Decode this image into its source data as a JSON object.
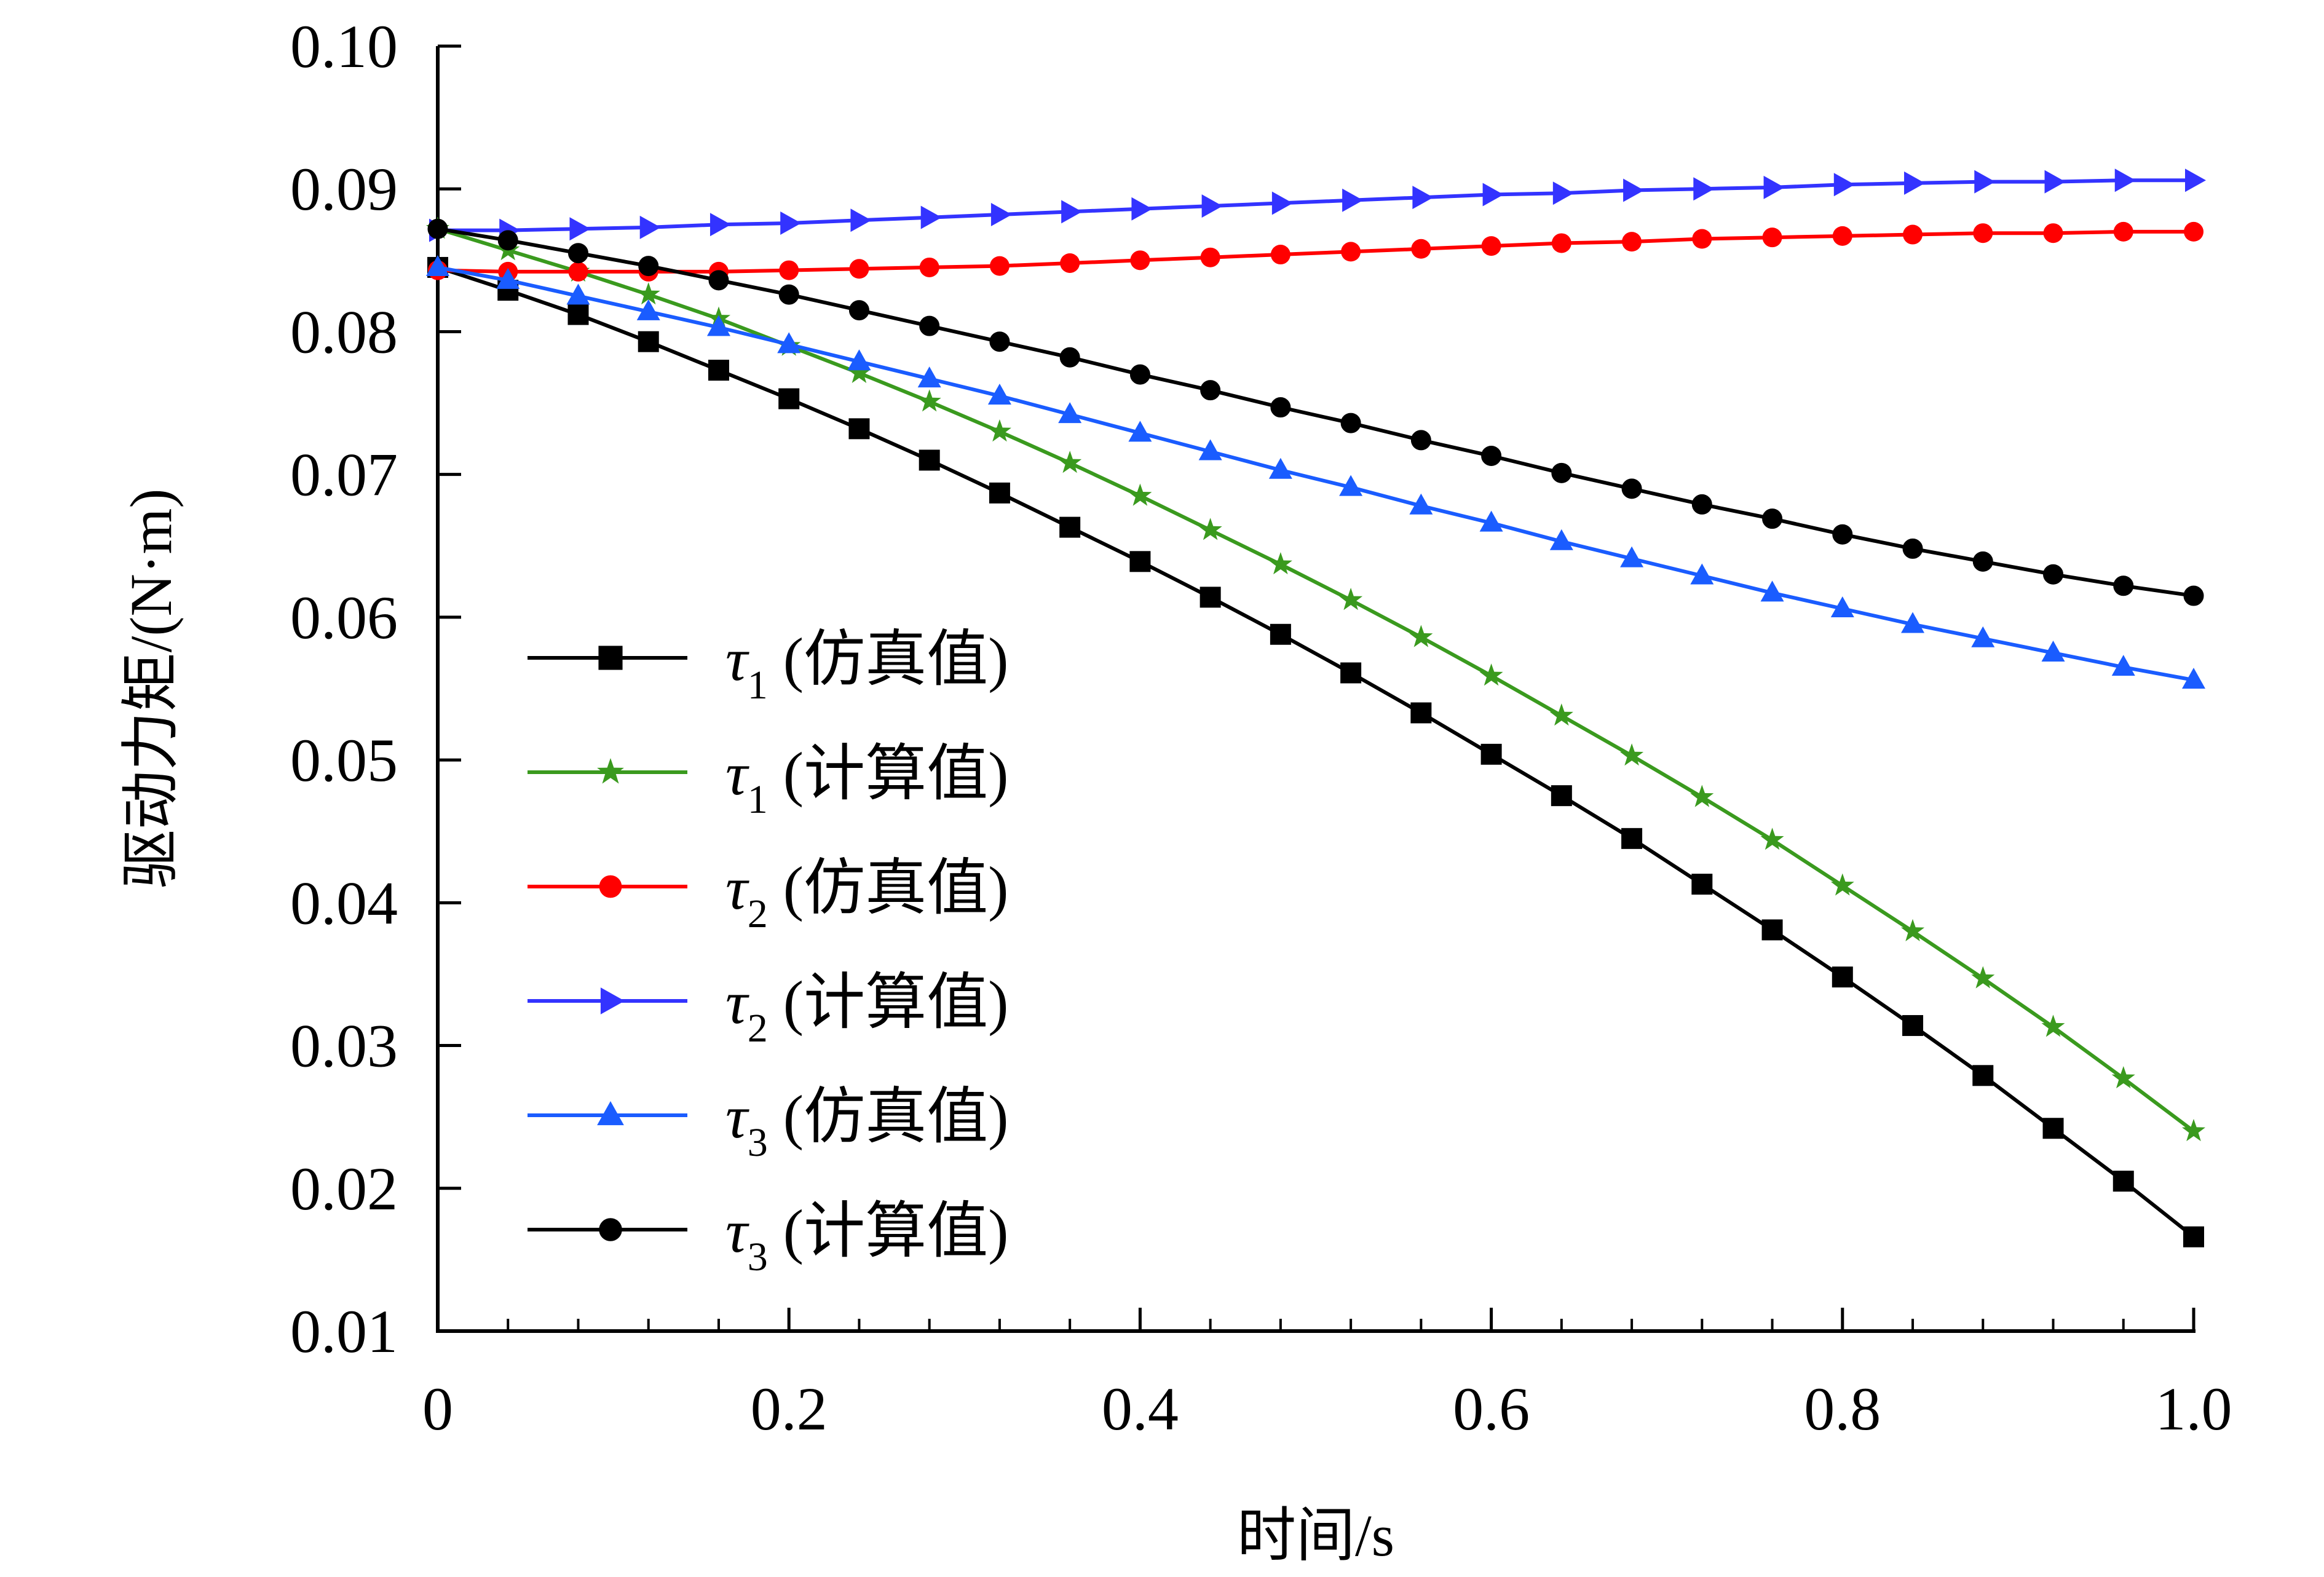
{
  "chart_data": {
    "type": "line",
    "title": "",
    "xlabel": "时间/s",
    "ylabel": "驱动力矩/(N·m)",
    "xlim": [
      0,
      1.0
    ],
    "ylim": [
      0.01,
      0.1
    ],
    "grid": false,
    "legend_position": "left-center",
    "x_ticks": [
      0,
      0.2,
      0.4,
      0.6,
      0.8,
      1.0
    ],
    "x_tick_labels": [
      "0",
      "0.2",
      "0.4",
      "0.6",
      "0.8",
      "1.0"
    ],
    "y_ticks": [
      0.01,
      0.02,
      0.03,
      0.04,
      0.05,
      0.06,
      0.07,
      0.08,
      0.09,
      0.1
    ],
    "y_tick_labels": [
      "0.01",
      "0.02",
      "0.03",
      "0.04",
      "0.05",
      "0.06",
      "0.07",
      "0.08",
      "0.09",
      "0.10"
    ],
    "x": [
      0,
      0.04,
      0.08,
      0.12,
      0.16,
      0.2,
      0.24,
      0.28,
      0.32,
      0.36,
      0.4,
      0.44,
      0.48,
      0.52,
      0.56,
      0.6,
      0.64,
      0.68,
      0.72,
      0.76,
      0.8,
      0.84,
      0.88,
      0.92,
      0.96,
      1.0
    ],
    "series": [
      {
        "name": "τ1 (仿真值)",
        "symbol": "τ",
        "subscript": "1",
        "suffix": " (仿真值)",
        "color": "#000000",
        "marker": "square",
        "values": [
          0.0845,
          0.0829,
          0.0812,
          0.0793,
          0.0773,
          0.0753,
          0.0732,
          0.071,
          0.0687,
          0.0663,
          0.0639,
          0.0614,
          0.0588,
          0.0561,
          0.0533,
          0.0504,
          0.0475,
          0.0445,
          0.0413,
          0.0381,
          0.0348,
          0.0314,
          0.0279,
          0.0242,
          0.0205,
          0.0166
        ]
      },
      {
        "name": "τ1 (计算值)",
        "symbol": "τ",
        "subscript": "1",
        "suffix": " (计算值)",
        "color": "#3a9a1e",
        "marker": "star",
        "values": [
          0.0872,
          0.0857,
          0.0842,
          0.0826,
          0.0809,
          0.079,
          0.0771,
          0.0751,
          0.073,
          0.0708,
          0.0685,
          0.0661,
          0.0637,
          0.0612,
          0.0586,
          0.0559,
          0.0531,
          0.0503,
          0.0474,
          0.0444,
          0.0412,
          0.038,
          0.0347,
          0.0313,
          0.0277,
          0.024
        ]
      },
      {
        "name": "τ2 (仿真值)",
        "symbol": "τ",
        "subscript": "2",
        "suffix": " (仿真值)",
        "color": "#ff0000",
        "marker": "circle",
        "values": [
          0.0843,
          0.0842,
          0.0842,
          0.0842,
          0.0842,
          0.0843,
          0.0844,
          0.0845,
          0.0846,
          0.0848,
          0.085,
          0.0852,
          0.0854,
          0.0856,
          0.0858,
          0.086,
          0.0862,
          0.0863,
          0.0865,
          0.0866,
          0.0867,
          0.0868,
          0.0869,
          0.0869,
          0.087,
          0.087
        ]
      },
      {
        "name": "τ2 (计算值)",
        "symbol": "τ",
        "subscript": "2",
        "suffix": " (计算值)",
        "color": "#3333ff",
        "marker": "triangle-right",
        "values": [
          0.0871,
          0.0871,
          0.0872,
          0.0873,
          0.0875,
          0.0876,
          0.0878,
          0.088,
          0.0882,
          0.0884,
          0.0886,
          0.0888,
          0.089,
          0.0892,
          0.0894,
          0.0896,
          0.0897,
          0.0899,
          0.09,
          0.0901,
          0.0903,
          0.0904,
          0.0905,
          0.0905,
          0.0906,
          0.0906
        ]
      },
      {
        "name": "τ3 (仿真值)",
        "symbol": "τ",
        "subscript": "3",
        "suffix": " (仿真值)",
        "color": "#1a5cff",
        "marker": "triangle-up",
        "values": [
          0.0845,
          0.0836,
          0.0825,
          0.0814,
          0.0803,
          0.0791,
          0.0779,
          0.0767,
          0.0755,
          0.0742,
          0.0729,
          0.0716,
          0.0703,
          0.0691,
          0.0678,
          0.0666,
          0.0653,
          0.0641,
          0.0629,
          0.0617,
          0.0606,
          0.0595,
          0.0585,
          0.0575,
          0.0565,
          0.0556
        ]
      },
      {
        "name": "τ3 (计算值)",
        "symbol": "τ",
        "subscript": "3",
        "suffix": " (计算值)",
        "color": "#000000",
        "marker": "circle-open",
        "values": [
          0.0872,
          0.0864,
          0.0855,
          0.0846,
          0.0836,
          0.0826,
          0.0815,
          0.0804,
          0.0793,
          0.0782,
          0.077,
          0.0759,
          0.0747,
          0.0736,
          0.0724,
          0.0713,
          0.0701,
          0.069,
          0.0679,
          0.0669,
          0.0658,
          0.0648,
          0.0639,
          0.063,
          0.0622,
          0.0615
        ]
      }
    ]
  }
}
